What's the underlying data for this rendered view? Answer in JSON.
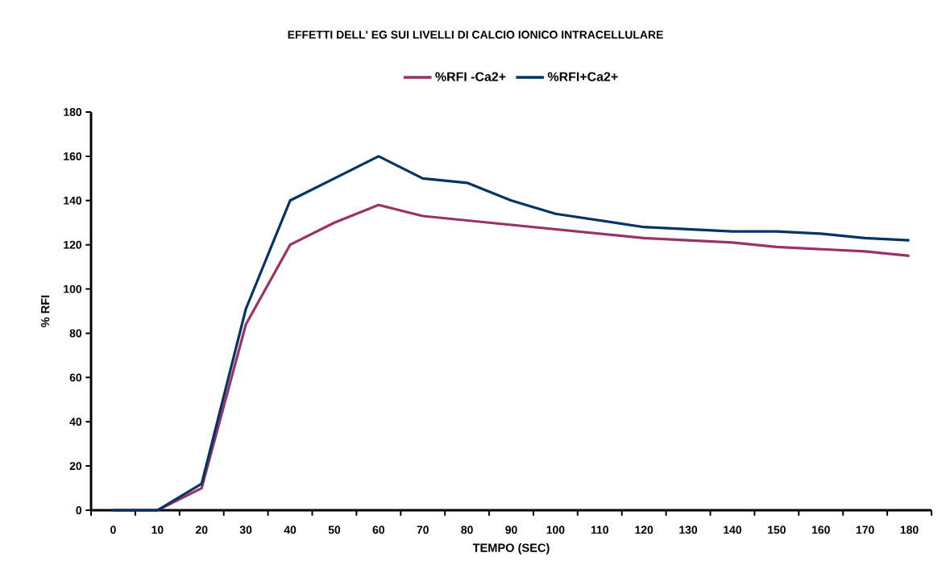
{
  "chart_data": {
    "type": "line",
    "title": "EFFETTI DELL' EG SUI LIVELLI DI CALCIO IONICO INTRACELLULARE",
    "xlabel": "TEMPO (SEC)",
    "ylabel": "% RFI",
    "categories": [
      "0",
      "10",
      "20",
      "30",
      "40",
      "50",
      "60",
      "70",
      "80",
      "90",
      "100",
      "110",
      "120",
      "130",
      "140",
      "150",
      "160",
      "170",
      "180"
    ],
    "series": [
      {
        "name": "%RFI -Ca2+",
        "color": "#993366",
        "values": [
          0,
          0,
          10,
          84,
          120,
          130,
          138,
          133,
          131,
          129,
          127,
          125,
          123,
          122,
          121,
          119,
          118,
          117,
          115
        ]
      },
      {
        "name": "%RFI+Ca2+",
        "color": "#003366",
        "values": [
          0,
          0,
          12,
          91,
          140,
          150,
          160,
          150,
          148,
          140,
          134,
          131,
          128,
          127,
          126,
          126,
          125,
          123,
          122
        ]
      }
    ],
    "ylim": [
      0,
      180
    ],
    "yticks": [
      0,
      20,
      40,
      60,
      80,
      100,
      120,
      140,
      160,
      180
    ],
    "grid": false,
    "legend": "top",
    "marker": "none",
    "line_style": "solid"
  }
}
